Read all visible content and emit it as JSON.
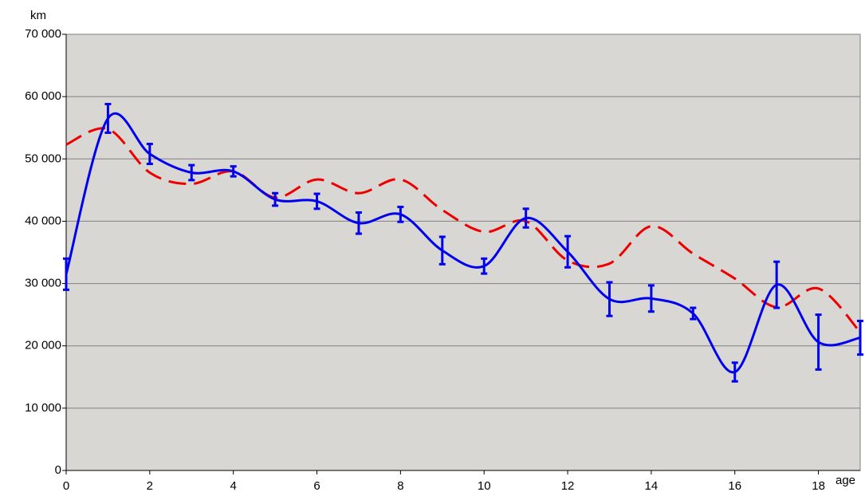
{
  "chart_data": {
    "type": "line",
    "y_label": "km",
    "x_label": "age",
    "x": [
      0,
      1,
      2,
      3,
      4,
      5,
      6,
      7,
      8,
      9,
      10,
      11,
      12,
      13,
      14,
      15,
      16,
      17,
      18,
      19
    ],
    "series": [
      {
        "color": "#0000ee",
        "style": "solid",
        "values": [
          31500,
          56500,
          50800,
          47800,
          48000,
          43500,
          43200,
          39700,
          41100,
          35300,
          32800,
          40500,
          35100,
          27500,
          27600,
          25200,
          15800,
          29800,
          20600,
          21300
        ],
        "errors": [
          2500,
          2300,
          1600,
          1200,
          800,
          1000,
          1200,
          1700,
          1200,
          2200,
          1200,
          1500,
          2500,
          2700,
          2100,
          900,
          1500,
          3700,
          4400,
          2700
        ]
      },
      {
        "color": "#ee0000",
        "style": "dashed",
        "values": [
          52300,
          54800,
          47800,
          46000,
          48000,
          43800,
          46700,
          44500,
          46700,
          41800,
          38300,
          40000,
          33700,
          33200,
          39200,
          34800,
          30800,
          26200,
          29200,
          22200
        ]
      }
    ],
    "xlim": [
      0,
      19
    ],
    "xticks": [
      0,
      2,
      4,
      6,
      8,
      10,
      12,
      14,
      16,
      18
    ],
    "ylim": [
      0,
      70000
    ],
    "yticks": [
      0,
      {
        "value": 10000,
        "label": "10 000"
      },
      {
        "value": 20000,
        "label": "20 000"
      },
      {
        "value": 30000,
        "label": "30 000"
      },
      {
        "value": 40000,
        "label": "40 000"
      },
      {
        "value": 50000,
        "label": "50 000"
      },
      {
        "value": 60000,
        "label": "60 000"
      },
      {
        "value": 70000,
        "label": "70 000"
      }
    ],
    "grid": true,
    "background": "#d9d7d3"
  }
}
